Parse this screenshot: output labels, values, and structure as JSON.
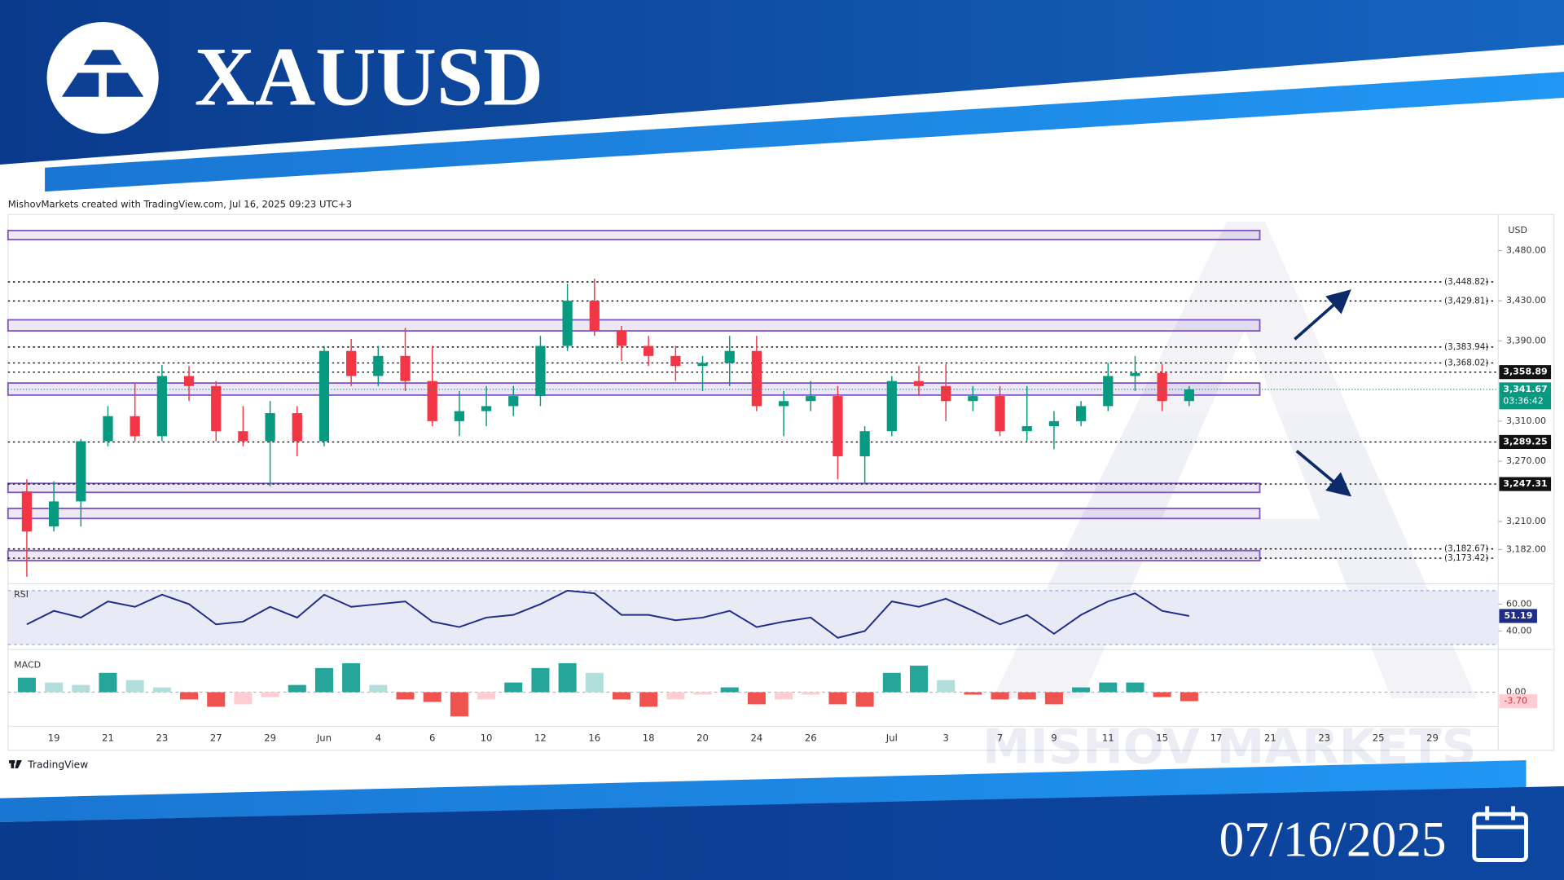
{
  "header": {
    "title": "XAUUSD",
    "date": "07/16/2025"
  },
  "caption": "MishovMarkets created with TradingView.com, Jul 16, 2025 09:23 UTC+3",
  "watermark": "MISHOV MARKETS",
  "footer_brand": "TradingView",
  "chart_data": [
    {
      "type": "candlestick",
      "unit": "USD",
      "categories": [
        null,
        "19",
        null,
        "21",
        null,
        "23",
        null,
        "27",
        null,
        "29",
        null,
        "Jun",
        null,
        "4",
        null,
        "6",
        null,
        "10",
        null,
        "12",
        null,
        "16",
        null,
        "18",
        null,
        "20",
        null,
        "24",
        null,
        "26",
        null,
        null,
        "Jul",
        null,
        "3",
        null,
        "7",
        null,
        "9",
        null,
        "11",
        null,
        "15",
        null,
        "17",
        null,
        "21",
        null,
        "23",
        null,
        "25",
        null,
        "29"
      ],
      "open": [
        3240,
        3205,
        3230,
        3290,
        3315,
        3295,
        3355,
        3345,
        3300,
        3290,
        3318,
        3290,
        3380,
        3355,
        3375,
        3350,
        3310,
        3320,
        3325,
        3335,
        3385,
        3430,
        3400,
        3385,
        3375,
        3365,
        3368,
        3380,
        3325,
        3330,
        3335,
        3275,
        3300,
        3350,
        3345,
        3330,
        3335,
        3300,
        3305,
        3310,
        3325,
        3355,
        3358,
        3330,
        null,
        null,
        null,
        null,
        null,
        null,
        null,
        null,
        null
      ],
      "high": [
        3252,
        3250,
        3292,
        3325,
        3348,
        3366,
        3365,
        3350,
        3325,
        3330,
        3325,
        3385,
        3392,
        3385,
        3403,
        3385,
        3340,
        3345,
        3345,
        3395,
        3447,
        3452,
        3405,
        3395,
        3385,
        3375,
        3395,
        3395,
        3340,
        3350,
        3345,
        3305,
        3355,
        3365,
        3367,
        3345,
        3345,
        3345,
        3320,
        3330,
        3368,
        3375,
        3367,
        3345,
        null,
        null,
        null,
        null,
        null,
        null,
        null,
        null,
        null
      ],
      "low": [
        3155,
        3200,
        3205,
        3285,
        3290,
        3290,
        3330,
        3290,
        3285,
        3245,
        3275,
        3285,
        3345,
        3345,
        3340,
        3305,
        3295,
        3305,
        3315,
        3325,
        3380,
        3395,
        3370,
        3365,
        3350,
        3340,
        3345,
        3320,
        3295,
        3320,
        3252,
        3247,
        3295,
        3335,
        3310,
        3320,
        3295,
        3290,
        3282,
        3305,
        3320,
        3340,
        3320,
        3325,
        null,
        null,
        null,
        null,
        null,
        null,
        null,
        null,
        null
      ],
      "close": [
        3200,
        3230,
        3290,
        3315,
        3295,
        3355,
        3345,
        3300,
        3290,
        3318,
        3290,
        3380,
        3355,
        3375,
        3350,
        3310,
        3320,
        3325,
        3335,
        3385,
        3430,
        3400,
        3385,
        3375,
        3365,
        3368,
        3380,
        3325,
        3330,
        3335,
        3275,
        3300,
        3350,
        3345,
        3330,
        3335,
        3300,
        3305,
        3310,
        3325,
        3355,
        3358,
        3330,
        3341.67,
        null,
        null,
        null,
        null,
        null,
        null,
        null,
        null,
        null
      ],
      "up_color": "#089981",
      "down_color": "#f23645",
      "ylim": [
        3151,
        3513
      ],
      "yticks": [
        {
          "value": 3480,
          "label": "3,480.00"
        },
        {
          "value": 3430,
          "label": "3,430.00"
        },
        {
          "value": 3390,
          "label": "3,390.00"
        },
        {
          "value": 3310,
          "label": "3,310.00"
        },
        {
          "value": 3270,
          "label": "3,270.00"
        },
        {
          "value": 3210,
          "label": "3,210.00"
        },
        {
          "value": 3182,
          "label": "3,182.00"
        }
      ],
      "zones": [
        [
          3491,
          3500
        ],
        [
          3400,
          3411
        ],
        [
          3336,
          3348
        ],
        [
          3239,
          3248
        ],
        [
          3213,
          3223
        ],
        [
          3171,
          3181
        ]
      ],
      "zone_color": "#7e57c2",
      "levels": [
        {
          "value": 3448.82,
          "label": "(3,448.82)",
          "style": "plain"
        },
        {
          "value": 3429.81,
          "label": "(3,429.81)",
          "style": "plain"
        },
        {
          "value": 3383.94,
          "label": "(3,383.94)",
          "style": "plain"
        },
        {
          "value": 3368.02,
          "label": "(3,368.02)",
          "style": "plain"
        },
        {
          "value": 3358.89,
          "label": "3,358.89",
          "style": "boxed"
        },
        {
          "value": 3289.25,
          "label": "3,289.25",
          "style": "boxed"
        },
        {
          "value": 3247.31,
          "label": "3,247.31",
          "style": "boxed"
        },
        {
          "value": 3182.67,
          "label": "(3,182.67)",
          "style": "plain"
        },
        {
          "value": 3173.42,
          "label": "(3,173.42)",
          "style": "plain"
        }
      ],
      "last_price": {
        "value": 3341.67,
        "label": "3,341.67"
      },
      "countdown": "03:36:42"
    },
    {
      "type": "line",
      "label": "RSI",
      "values": [
        45,
        55,
        50,
        62,
        58,
        67,
        60,
        45,
        47,
        58,
        50,
        67,
        58,
        60,
        62,
        47,
        43,
        50,
        52,
        60,
        70,
        68,
        52,
        52,
        48,
        50,
        55,
        43,
        47,
        50,
        35,
        40,
        62,
        58,
        64,
        55,
        45,
        52,
        38,
        52,
        62,
        68,
        55,
        51.19,
        null,
        null,
        null,
        null,
        null,
        null,
        null,
        null,
        null
      ],
      "color": "#1f2d86",
      "band_color": "#e8eaf6",
      "ylim": [
        30,
        70
      ],
      "yticks": [
        {
          "value": 60,
          "label": "60.00"
        },
        {
          "value": 40,
          "label": "40.00"
        }
      ]
    },
    {
      "type": "bar",
      "label": "MACD",
      "values": [
        6,
        4,
        3,
        8,
        5,
        2,
        -3,
        -6,
        -5,
        -2,
        3,
        10,
        12,
        3,
        -3,
        -4,
        -10,
        -3,
        4,
        10,
        12,
        8,
        -3,
        -6,
        -3,
        -1,
        2,
        -5,
        -3,
        -1,
        -5,
        -6,
        8,
        11,
        5,
        -1,
        -3,
        -3,
        -5,
        2,
        4,
        4,
        -2,
        -3.7,
        null,
        null,
        null,
        null,
        null,
        null,
        null,
        null,
        null
      ],
      "up_color": "#26a69a",
      "up_fade": "#b2dfdb",
      "down_color": "#ef5350",
      "down_fade": "#ffcdd2",
      "ylim": [
        -17,
        16
      ],
      "yticks": [
        {
          "value": 0,
          "label": "0.00"
        }
      ],
      "last": {
        "value": -3.7,
        "label": "-3.70"
      }
    }
  ]
}
